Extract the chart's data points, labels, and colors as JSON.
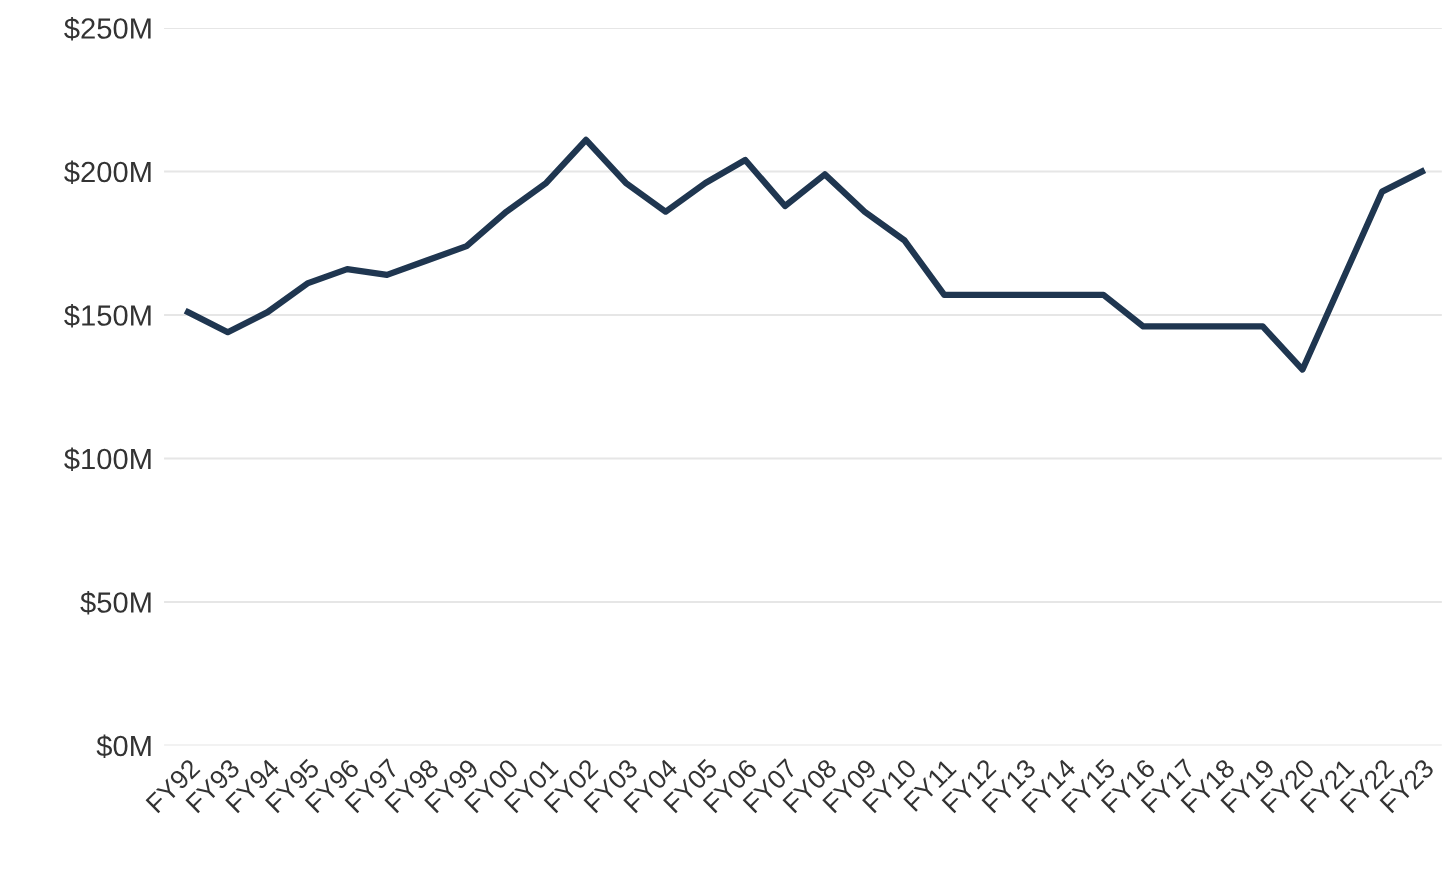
{
  "chart_data": {
    "type": "line",
    "categories": [
      "FY92",
      "FY93",
      "FY94",
      "FY95",
      "FY96",
      "FY97",
      "FY98",
      "FY99",
      "FY00",
      "FY01",
      "FY02",
      "FY03",
      "FY04",
      "FY05",
      "FY06",
      "FY07",
      "FY08",
      "FY09",
      "FY10",
      "FY11",
      "FY12",
      "FY13",
      "FY14",
      "FY15",
      "FY16",
      "FY17",
      "FY18",
      "FY19",
      "FY20",
      "FY21",
      "FY22",
      "FY23"
    ],
    "series": [
      {
        "color": "#1f3650",
        "values": [
          151,
          144,
          151,
          161,
          166,
          164,
          169,
          174,
          186,
          196,
          211,
          196,
          186,
          196,
          204,
          188,
          199,
          186,
          176,
          157,
          157,
          157,
          157,
          157,
          146,
          146,
          146,
          146,
          131,
          162,
          193,
          200
        ]
      }
    ],
    "ylim": [
      0,
      250
    ],
    "yticks": [
      {
        "value": 0,
        "label": "$0M"
      },
      {
        "value": 50,
        "label": "$50M"
      },
      {
        "value": 100,
        "label": "$100M"
      },
      {
        "value": 150,
        "label": "$150M"
      },
      {
        "value": 200,
        "label": "$200M"
      },
      {
        "value": 250,
        "label": "$250M"
      }
    ],
    "grid": "y",
    "marker": "none",
    "line_style": "solid"
  }
}
